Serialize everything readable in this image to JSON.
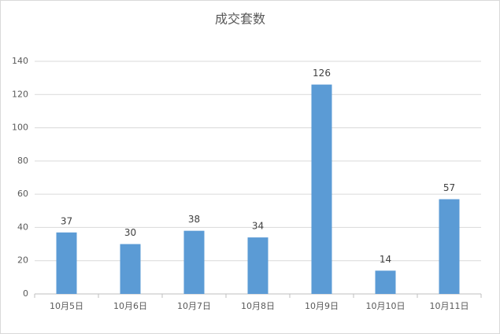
{
  "chart_data": {
    "type": "bar",
    "title": "成交套数",
    "categories": [
      "10月5日",
      "10月6日",
      "10月7日",
      "10月8日",
      "10月9日",
      "10月10日",
      "10月11日"
    ],
    "values": [
      37,
      30,
      38,
      34,
      126,
      14,
      57
    ],
    "color": "#5b9bd5",
    "ylim": [
      0,
      140
    ],
    "yticks": [
      0,
      20,
      40,
      60,
      80,
      100,
      120,
      140
    ],
    "grid": true
  }
}
